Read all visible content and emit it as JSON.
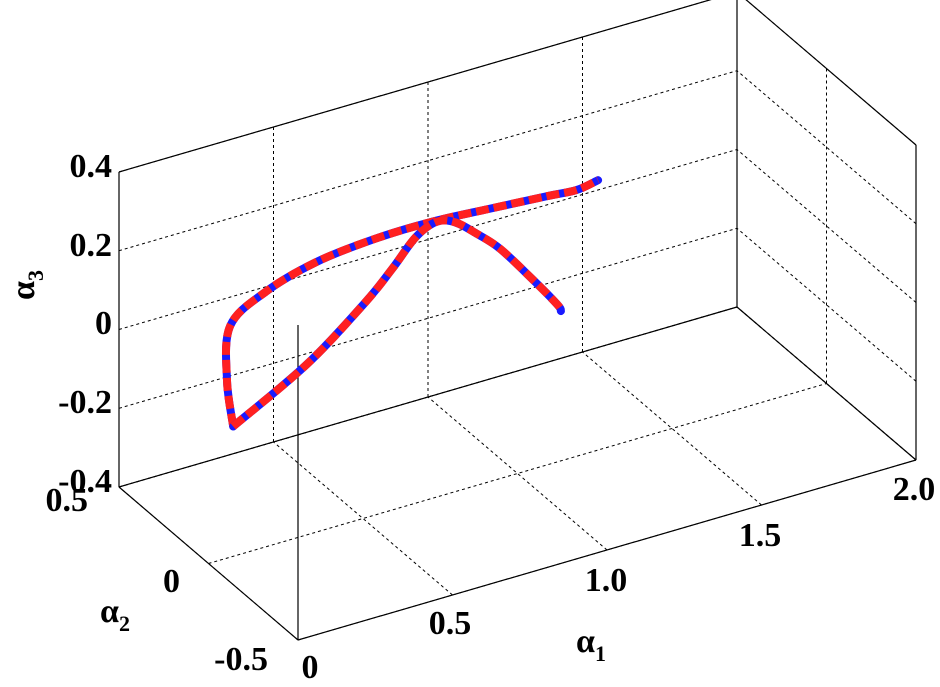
{
  "chart_data": {
    "type": "line3d",
    "title": "",
    "xlabel": "α",
    "xlabel_sub": "1",
    "ylabel": "α",
    "ylabel_sub": "2",
    "zlabel": "α",
    "zlabel_sub": "3",
    "xlim": [
      0,
      2.0
    ],
    "ylim": [
      -0.5,
      0.5
    ],
    "zlim": [
      -0.4,
      0.4
    ],
    "xticks": [
      "0",
      "0.5",
      "1.0",
      "1.5",
      "2.0"
    ],
    "yticks": [
      "-0.5",
      "0",
      "0.5"
    ],
    "zticks": [
      "-0.4",
      "-0.2",
      "0",
      "0.2",
      "0.4"
    ],
    "grid": true,
    "series": [
      {
        "color_outer": "#ff2020",
        "color_inner": "#1a1aff",
        "style": "red dashed over blue",
        "points": [
          [
            0.021,
            -0.102,
            -0.017
          ],
          [
            0.1,
            0.069,
            0.015
          ],
          [
            0.24,
            0.293,
            0.035
          ],
          [
            0.41,
            0.386,
            0.047
          ],
          [
            0.6,
            0.44,
            0.056
          ],
          [
            0.8,
            0.47,
            0.056
          ],
          [
            1.0,
            0.491,
            0.047
          ],
          [
            1.2,
            0.507,
            0.029
          ],
          [
            1.4,
            0.531,
            0.006
          ],
          [
            1.5,
            0.534,
            -0.002
          ],
          [
            1.588,
            0.565,
            -0.009
          ]
        ]
      },
      {
        "color_outer": "#ff2020",
        "color_inner": "#1a1aff",
        "style": "red dashed over blue",
        "points": [
          [
            0.021,
            -0.102,
            -0.017
          ],
          [
            0.25,
            -0.122,
            0.098
          ],
          [
            0.45,
            -0.099,
            0.199
          ],
          [
            0.56,
            -0.06,
            0.244
          ],
          [
            0.68,
            0.015,
            0.268
          ],
          [
            0.8,
            0.106,
            0.244
          ],
          [
            0.9,
            0.173,
            0.193
          ],
          [
            1.0,
            0.223,
            0.121
          ],
          [
            1.1,
            0.27,
            0.043
          ],
          [
            1.2,
            0.281,
            -0.053
          ],
          [
            1.3,
            0.297,
            -0.154
          ],
          [
            1.33,
            0.327,
            -0.19
          ]
        ]
      }
    ]
  }
}
